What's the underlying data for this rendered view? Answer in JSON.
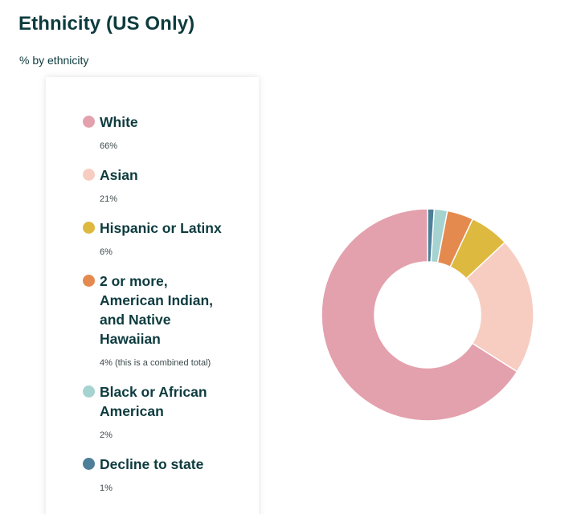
{
  "header": {
    "title": "Ethnicity (US Only)",
    "subtitle": "% by ethnicity"
  },
  "legend": {
    "items": [
      {
        "label": "White",
        "value": "66%",
        "color": "#e3a1ad"
      },
      {
        "label": "Asian",
        "value": "21%",
        "color": "#f7cdc2"
      },
      {
        "label": "Hispanic or Latinx",
        "value": "6%",
        "color": "#ddb940"
      },
      {
        "label": "2 or more, American Indian, and Native Hawaiian",
        "value": "4% (this is a combined total)",
        "color": "#e58a4e"
      },
      {
        "label": "Black or African American",
        "value": "2%",
        "color": "#a5d3cf"
      },
      {
        "label": "Decline to state",
        "value": "1%",
        "color": "#4d7f99"
      }
    ]
  },
  "chart_data": {
    "type": "pie",
    "variant": "donut",
    "title": "Ethnicity (US Only)",
    "subtitle": "% by ethnicity",
    "categories": [
      "White",
      "Asian",
      "Hispanic or Latinx",
      "2 or more, American Indian, and Native Hawaiian",
      "Black or African American",
      "Decline to state"
    ],
    "values": [
      66,
      21,
      6,
      4,
      2,
      1
    ],
    "colors": [
      "#e3a1ad",
      "#f7cdc2",
      "#ddb940",
      "#e58a4e",
      "#a5d3cf",
      "#4d7f99"
    ],
    "unit": "%",
    "order": "clockwise-from-top-reversed"
  }
}
